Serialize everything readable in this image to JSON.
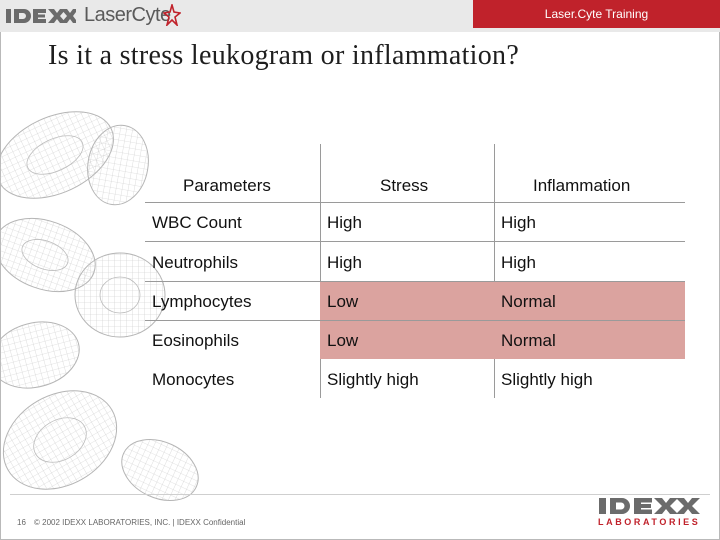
{
  "header": {
    "brand": "IDEXX",
    "product": "LaserCyte",
    "training": "Laser.Cyte Training"
  },
  "title": "Is it a stress leukogram or inflammation?",
  "table": {
    "columns": [
      "Parameters",
      "Stress",
      "Inflammation"
    ],
    "rows": [
      {
        "parameter": "WBC Count",
        "stress": "High",
        "inflammation": "High",
        "highlight": false
      },
      {
        "parameter": "Neutrophils",
        "stress": "High",
        "inflammation": "High",
        "highlight": false
      },
      {
        "parameter": "Lymphocytes",
        "stress": "Low",
        "inflammation": "Normal",
        "highlight": true
      },
      {
        "parameter": "Eosinophils",
        "stress": "Low",
        "inflammation": "Normal",
        "highlight": true
      },
      {
        "parameter": "Monocytes",
        "stress": "Slightly high",
        "inflammation": "Slightly high",
        "highlight": false
      }
    ],
    "highlight_color": "#dba39f"
  },
  "footer": {
    "page_number": "16",
    "copyright": "© 2002 IDEXX LABORATORIES, INC. | IDEXX Confidential",
    "logo_brand": "IDEXX",
    "logo_sub": "LABORATORIES"
  },
  "colors": {
    "accent": "#c0222b",
    "header_bg": "#e9e9e9"
  }
}
